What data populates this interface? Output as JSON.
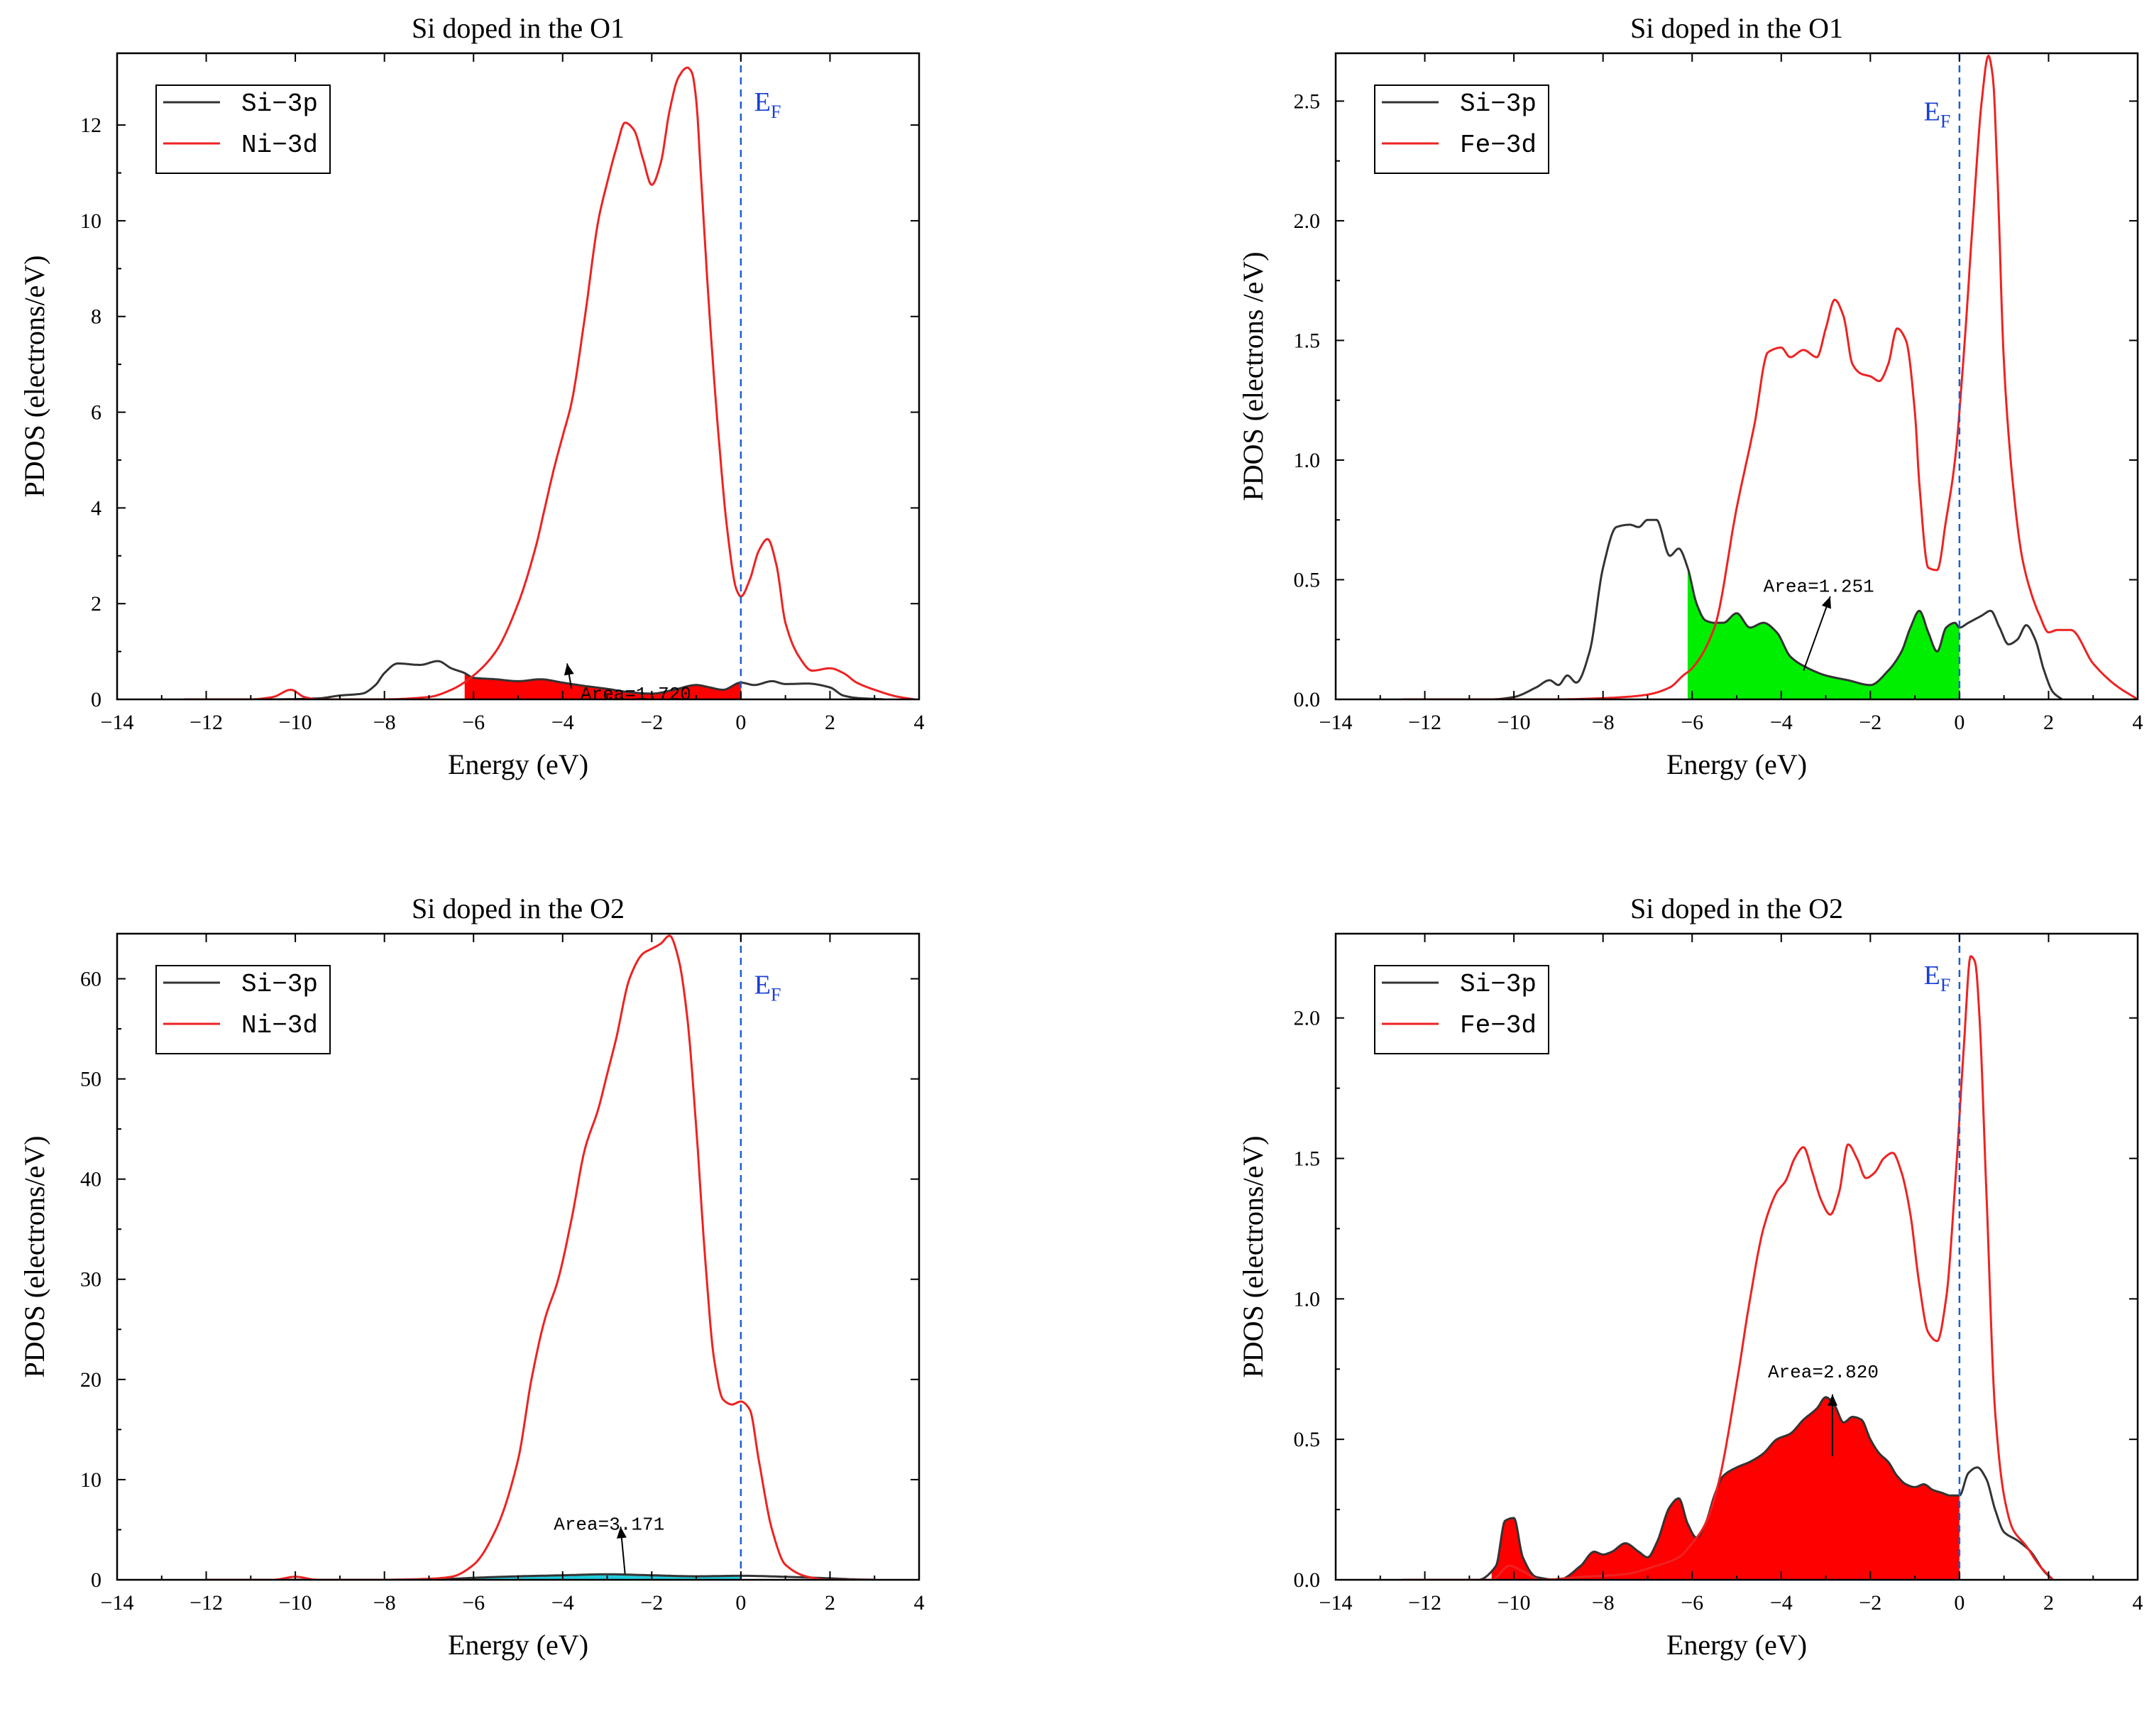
{
  "chart_data": [
    {
      "type": "line",
      "title": "Si doped in the O1",
      "xlabel": "Energy (eV)",
      "ylabel": "PDOS (electrons/eV)",
      "xlim": [
        -14,
        4
      ],
      "ylim": [
        0,
        13.5
      ],
      "x_ticks": [
        -14,
        -12,
        -10,
        -8,
        -6,
        -4,
        -2,
        0,
        2,
        4
      ],
      "x_tick_labels": [
        "−14",
        "−12",
        "−10",
        "−8",
        "−6",
        "−4",
        "−2",
        "0",
        "2",
        "4"
      ],
      "y_ticks": [
        0,
        2,
        4,
        6,
        8,
        10,
        12
      ],
      "y_tick_labels": [
        "0",
        "2",
        "4",
        "6",
        "8",
        "10",
        "12"
      ],
      "legend": {
        "position": "top-left",
        "items": [
          {
            "label": "Si−3p",
            "color": "#333333"
          },
          {
            "label": "Ni−3d",
            "color": "#ee2222"
          }
        ]
      },
      "fermi_label": {
        "main": "E",
        "sub": "F"
      },
      "fermi_label_x": 0.3,
      "fermi_label_y": 12.3,
      "annotation": {
        "text": "Area=1.720",
        "at": [
          -3.6,
          0.0
        ],
        "arrow_from": [
          -3.8,
          0.22
        ],
        "arrow_to": [
          -3.9,
          0.75
        ]
      },
      "fill": {
        "color": "#ff0000",
        "series": 0,
        "xrange": [
          -6.2,
          0
        ]
      },
      "series": [
        {
          "name": "Si-3p",
          "color": "#333333",
          "x": [
            -12.5,
            -10.5,
            -9.5,
            -9,
            -8.5,
            -8.2,
            -8,
            -7.7,
            -7.2,
            -6.8,
            -6.5,
            -6.2,
            -6,
            -5.5,
            -5,
            -4.5,
            -4,
            -3.5,
            -3,
            -2.5,
            -2,
            -1.5,
            -1,
            -0.7,
            -0.4,
            0,
            0.3,
            0.7,
            1,
            1.5,
            2,
            2.3,
            2.6,
            3.2
          ],
          "y": [
            0,
            0,
            0.02,
            0.08,
            0.12,
            0.3,
            0.55,
            0.75,
            0.72,
            0.8,
            0.65,
            0.55,
            0.45,
            0.42,
            0.38,
            0.42,
            0.35,
            0.28,
            0.22,
            0.15,
            0.12,
            0.2,
            0.3,
            0.25,
            0.2,
            0.35,
            0.3,
            0.38,
            0.32,
            0.33,
            0.25,
            0.08,
            0.03,
            0
          ]
        },
        {
          "name": "Ni-3d",
          "color": "#ee2222",
          "x": [
            -12.5,
            -11,
            -10.5,
            -10.1,
            -9.8,
            -9.5,
            -8,
            -7,
            -6.5,
            -6,
            -5.5,
            -5,
            -4.6,
            -4.4,
            -4.2,
            -4,
            -3.8,
            -3.5,
            -3.2,
            -3,
            -2.8,
            -2.6,
            -2.4,
            -2.2,
            -2,
            -1.8,
            -1.6,
            -1.4,
            -1.2,
            -1.1,
            -1,
            -0.9,
            -0.7,
            -0.5,
            -0.3,
            -0.1,
            0,
            0.2,
            0.4,
            0.6,
            0.8,
            1,
            1.3,
            1.6,
            2,
            2.3,
            2.6,
            3,
            3.5,
            3.9
          ],
          "y": [
            0,
            0,
            0.05,
            0.2,
            0.05,
            0,
            0,
            0.05,
            0.2,
            0.5,
            1.0,
            2.0,
            3.2,
            4.0,
            4.8,
            5.5,
            6.2,
            8.0,
            10.0,
            10.8,
            11.5,
            12.05,
            11.9,
            11.3,
            10.75,
            11.2,
            12.3,
            13.0,
            13.2,
            13.1,
            12.5,
            11.0,
            8.0,
            5.5,
            3.5,
            2.3,
            2.15,
            2.5,
            3.1,
            3.35,
            2.8,
            1.6,
            0.9,
            0.6,
            0.65,
            0.55,
            0.35,
            0.2,
            0.06,
            0
          ]
        }
      ]
    },
    {
      "type": "line",
      "title": "Si doped in the O1",
      "xlabel": "Energy (eV)",
      "ylabel": "PDOS (electrons /eV)",
      "xlim": [
        -14,
        4
      ],
      "ylim": [
        0,
        2.7
      ],
      "x_ticks": [
        -14,
        -12,
        -10,
        -8,
        -6,
        -4,
        -2,
        0,
        2,
        4
      ],
      "x_tick_labels": [
        "−14",
        "−12",
        "−10",
        "−8",
        "−6",
        "−4",
        "−2",
        "0",
        "2",
        "4"
      ],
      "y_ticks": [
        0,
        0.5,
        1.0,
        1.5,
        2.0,
        2.5
      ],
      "y_tick_labels": [
        "0.0",
        "0.5",
        "1.0",
        "1.5",
        "2.0",
        "2.5"
      ],
      "legend": {
        "position": "top-left",
        "items": [
          {
            "label": "Si−3p",
            "color": "#333333"
          },
          {
            "label": "Fe−3d",
            "color": "#ee2222"
          }
        ]
      },
      "fermi_label": {
        "main": "E",
        "sub": "F"
      },
      "fermi_label_x": -0.8,
      "fermi_label_y": 2.42,
      "annotation": {
        "text": "Area=1.251",
        "at": [
          -4.4,
          0.45
        ],
        "arrow_from": [
          -3.5,
          0.12
        ],
        "arrow_to": [
          -2.9,
          0.43
        ]
      },
      "fill": {
        "color": "#00ee00",
        "series": 0,
        "xrange": [
          -6.1,
          0
        ]
      },
      "series": [
        {
          "name": "Si-3p",
          "color": "#333333",
          "x": [
            -12.5,
            -10.5,
            -10,
            -9.5,
            -9.2,
            -9,
            -8.8,
            -8.6,
            -8.3,
            -8,
            -7.7,
            -7.4,
            -7.2,
            -7,
            -6.8,
            -6.5,
            -6.3,
            -6.1,
            -5.9,
            -5.7,
            -5.5,
            -5.3,
            -5,
            -4.7,
            -4.4,
            -4.1,
            -3.8,
            -3.5,
            -3,
            -2.5,
            -2,
            -1.6,
            -1.3,
            -1.1,
            -0.9,
            -0.7,
            -0.5,
            -0.3,
            -0.1,
            0,
            0.2,
            0.5,
            0.7,
            0.9,
            1.1,
            1.3,
            1.5,
            1.7,
            1.9,
            2.1,
            2.3
          ],
          "y": [
            0,
            0,
            0.01,
            0.05,
            0.08,
            0.06,
            0.1,
            0.07,
            0.2,
            0.55,
            0.72,
            0.73,
            0.72,
            0.75,
            0.75,
            0.6,
            0.63,
            0.55,
            0.4,
            0.33,
            0.32,
            0.32,
            0.36,
            0.3,
            0.32,
            0.28,
            0.18,
            0.14,
            0.1,
            0.08,
            0.06,
            0.12,
            0.2,
            0.3,
            0.37,
            0.28,
            0.2,
            0.3,
            0.32,
            0.3,
            0.32,
            0.35,
            0.37,
            0.3,
            0.23,
            0.25,
            0.31,
            0.25,
            0.12,
            0.03,
            0
          ]
        },
        {
          "name": "Fe-3d",
          "color": "#ee2222",
          "x": [
            -12.5,
            -9,
            -8,
            -7.5,
            -7,
            -6.5,
            -6.2,
            -6,
            -5.5,
            -5,
            -4.6,
            -4.3,
            -4,
            -3.8,
            -3.5,
            -3.2,
            -3,
            -2.8,
            -2.6,
            -2.4,
            -2.2,
            -2,
            -1.8,
            -1.6,
            -1.4,
            -1.2,
            -1,
            -0.9,
            -0.7,
            -0.5,
            -0.3,
            -0.1,
            0.1,
            0.3,
            0.5,
            0.65,
            0.75,
            0.85,
            1,
            1.2,
            1.4,
            1.6,
            1.8,
            2,
            2.2,
            2.5,
            3,
            3.5,
            4
          ],
          "y": [
            0,
            0,
            0.005,
            0.01,
            0.02,
            0.05,
            0.1,
            0.13,
            0.3,
            0.8,
            1.15,
            1.45,
            1.47,
            1.43,
            1.46,
            1.43,
            1.55,
            1.67,
            1.6,
            1.4,
            1.36,
            1.35,
            1.33,
            1.4,
            1.55,
            1.5,
            1.2,
            0.9,
            0.55,
            0.54,
            0.75,
            1.0,
            1.45,
            2.0,
            2.5,
            2.69,
            2.6,
            2.2,
            1.4,
            0.9,
            0.6,
            0.45,
            0.35,
            0.28,
            0.29,
            0.29,
            0.15,
            0.06,
            0
          ]
        }
      ]
    },
    {
      "type": "line",
      "title": "Si doped in the O2",
      "xlabel": "Energy (eV)",
      "ylabel": "PDOS (electrons/eV)",
      "xlim": [
        -14,
        4
      ],
      "ylim": [
        0,
        64.5
      ],
      "x_ticks": [
        -14,
        -12,
        -10,
        -8,
        -6,
        -4,
        -2,
        0,
        2,
        4
      ],
      "x_tick_labels": [
        "−14",
        "−12",
        "−10",
        "−8",
        "−6",
        "−4",
        "−2",
        "0",
        "2",
        "4"
      ],
      "y_ticks": [
        0,
        10,
        20,
        30,
        40,
        50,
        60
      ],
      "y_tick_labels": [
        "0",
        "10",
        "20",
        "30",
        "40",
        "50",
        "60"
      ],
      "legend": {
        "position": "top-left",
        "items": [
          {
            "label": "Si−3p",
            "color": "#333333"
          },
          {
            "label": "Ni−3d",
            "color": "#ee2222"
          }
        ]
      },
      "fermi_label": {
        "main": "E",
        "sub": "F"
      },
      "fermi_label_x": 0.3,
      "fermi_label_y": 58.5,
      "annotation": {
        "text": "Area=3.171",
        "at": [
          -4.2,
          5.0
        ],
        "arrow_from": [
          -2.6,
          0.6
        ],
        "arrow_to": [
          -2.7,
          5.3
        ]
      },
      "fill": {
        "color": "#22ccdd",
        "series": 0,
        "xrange": [
          -6.2,
          0
        ]
      },
      "series": [
        {
          "name": "Si-3p",
          "color": "#333333",
          "x": [
            -12,
            -10,
            -8,
            -6.5,
            -6,
            -5,
            -4,
            -3,
            -2,
            -1,
            0,
            1,
            2,
            2.5,
            3
          ],
          "y": [
            0,
            0,
            0,
            0.1,
            0.2,
            0.35,
            0.45,
            0.55,
            0.45,
            0.35,
            0.4,
            0.3,
            0.15,
            0.05,
            0
          ]
        },
        {
          "name": "Ni-3d",
          "color": "#ee2222",
          "x": [
            -12,
            -10.5,
            -10,
            -9.5,
            -8,
            -7,
            -6.5,
            -6,
            -5.5,
            -5,
            -4.7,
            -4.4,
            -4.1,
            -3.8,
            -3.5,
            -3.2,
            -3,
            -2.8,
            -2.5,
            -2.2,
            -2,
            -1.8,
            -1.6,
            -1.4,
            -1.2,
            -1,
            -0.8,
            -0.6,
            -0.4,
            -0.2,
            0,
            0.2,
            0.4,
            0.7,
            1,
            1.5,
            2,
            2.5,
            3
          ],
          "y": [
            0,
            0,
            0.3,
            0,
            0,
            0.1,
            0.3,
            1.5,
            5,
            12,
            20,
            26,
            30,
            36,
            43,
            47,
            50.5,
            54,
            60,
            62.5,
            63,
            63.5,
            64.3,
            62,
            56,
            45,
            32,
            22,
            18,
            17.5,
            17.8,
            17,
            12,
            5,
            1.5,
            0.3,
            0,
            0,
            0
          ]
        }
      ]
    },
    {
      "type": "line",
      "title": "Si doped in the O2",
      "xlabel": "Energy (eV)",
      "ylabel": "PDOS (electrons/eV)",
      "xlim": [
        -14,
        4
      ],
      "ylim": [
        0,
        2.3
      ],
      "x_ticks": [
        -14,
        -12,
        -10,
        -8,
        -6,
        -4,
        -2,
        0,
        2,
        4
      ],
      "x_tick_labels": [
        "−14",
        "−12",
        "−10",
        "−8",
        "−6",
        "−4",
        "−2",
        "0",
        "2",
        "4"
      ],
      "y_ticks": [
        0,
        0.5,
        1.0,
        1.5,
        2.0
      ],
      "y_tick_labels": [
        "0.0",
        "0.5",
        "1.0",
        "1.5",
        "2.0"
      ],
      "legend": {
        "position": "top-left",
        "items": [
          {
            "label": "Si−3p",
            "color": "#333333"
          },
          {
            "label": "Fe−3d",
            "color": "#ee2222"
          }
        ]
      },
      "fermi_label": {
        "main": "E",
        "sub": "F"
      },
      "fermi_label_x": -0.8,
      "fermi_label_y": 2.12,
      "annotation": {
        "text": "Area=2.820",
        "at": [
          -4.3,
          0.72
        ],
        "arrow_from": [
          -2.85,
          0.44
        ],
        "arrow_to": [
          -2.85,
          0.66
        ]
      },
      "fill": {
        "color": "#ff0000",
        "series": 0,
        "xrange": [
          -10.5,
          0
        ]
      },
      "series": [
        {
          "name": "Si-3p",
          "color": "#333333",
          "x": [
            -12.5,
            -10.8,
            -10.4,
            -10.2,
            -10,
            -9.8,
            -9.5,
            -9,
            -8.5,
            -8.2,
            -8,
            -7.8,
            -7.5,
            -7.2,
            -7,
            -6.8,
            -6.5,
            -6.3,
            -6.1,
            -5.9,
            -5.7,
            -5.5,
            -5.3,
            -5,
            -4.7,
            -4.4,
            -4.1,
            -3.8,
            -3.5,
            -3.2,
            -3,
            -2.8,
            -2.6,
            -2.4,
            -2.2,
            -2,
            -1.8,
            -1.6,
            -1.4,
            -1.2,
            -1,
            -0.8,
            -0.6,
            -0.4,
            -0.2,
            0,
            0.2,
            0.4,
            0.6,
            0.8,
            1,
            1.3,
            1.6,
            1.9,
            2.1
          ],
          "y": [
            0,
            0,
            0.05,
            0.21,
            0.22,
            0.08,
            0.01,
            0,
            0.05,
            0.1,
            0.09,
            0.1,
            0.13,
            0.1,
            0.08,
            0.13,
            0.26,
            0.29,
            0.2,
            0.15,
            0.2,
            0.3,
            0.37,
            0.4,
            0.42,
            0.45,
            0.5,
            0.52,
            0.57,
            0.61,
            0.65,
            0.62,
            0.56,
            0.58,
            0.57,
            0.5,
            0.45,
            0.42,
            0.37,
            0.34,
            0.33,
            0.34,
            0.32,
            0.31,
            0.3,
            0.3,
            0.38,
            0.4,
            0.36,
            0.25,
            0.17,
            0.14,
            0.1,
            0.03,
            0
          ]
        },
        {
          "name": "Fe-3d",
          "color": "#ee2222",
          "x": [
            -12.5,
            -10.5,
            -10.1,
            -9.8,
            -9.4,
            -8.5,
            -7.5,
            -6.8,
            -6.3,
            -6,
            -5.7,
            -5.4,
            -5,
            -4.7,
            -4.4,
            -4.1,
            -3.9,
            -3.7,
            -3.5,
            -3.3,
            -3.1,
            -2.9,
            -2.7,
            -2.5,
            -2.3,
            -2.1,
            -1.9,
            -1.7,
            -1.5,
            -1.3,
            -1.1,
            -0.9,
            -0.7,
            -0.5,
            -0.3,
            -0.1,
            0.1,
            0.25,
            0.35,
            0.45,
            0.6,
            0.8,
            1,
            1.2,
            1.5,
            1.8,
            2.1
          ],
          "y": [
            0,
            0,
            0.05,
            0.03,
            0,
            0.01,
            0.02,
            0.05,
            0.08,
            0.13,
            0.2,
            0.35,
            0.7,
            1.0,
            1.25,
            1.38,
            1.42,
            1.5,
            1.54,
            1.45,
            1.35,
            1.3,
            1.38,
            1.55,
            1.5,
            1.43,
            1.45,
            1.5,
            1.52,
            1.45,
            1.3,
            1.05,
            0.88,
            0.85,
            1.0,
            1.4,
            1.9,
            2.22,
            2.2,
            2.0,
            1.4,
            0.6,
            0.3,
            0.18,
            0.12,
            0.05,
            0
          ]
        }
      ]
    }
  ]
}
